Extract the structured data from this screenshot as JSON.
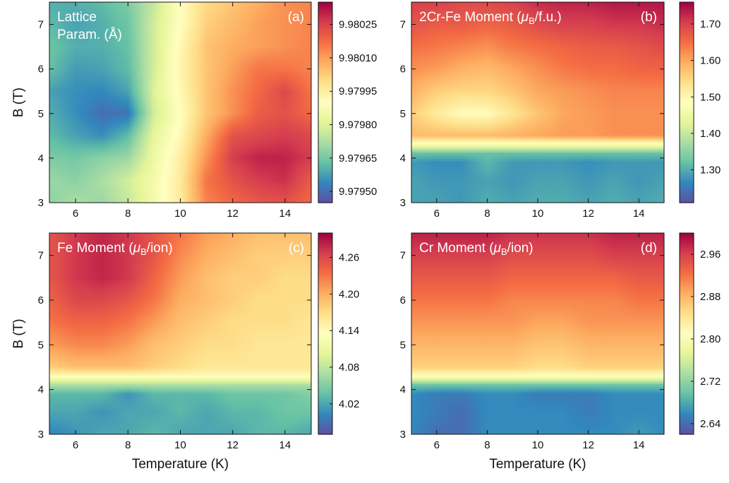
{
  "palette": [
    "#5e4fa2",
    "#3288bd",
    "#66c2a5",
    "#abdda4",
    "#e6f598",
    "#ffffbf",
    "#fee08b",
    "#fdae61",
    "#f46d43",
    "#d53e4f",
    "#9e0142"
  ],
  "chart_data": [
    {
      "type": "heatmap",
      "panel_label": "(a)",
      "title": "Lattice Param. (Å)",
      "title_lines": [
        "Lattice",
        "Param. (Å)"
      ],
      "xlabel": "",
      "ylabel": "B (T)",
      "xlim": [
        5,
        15
      ],
      "ylim": [
        3,
        7.5
      ],
      "xticks": [
        "6",
        "8",
        "10",
        "12",
        "14"
      ],
      "yticks": [
        "3",
        "4",
        "5",
        "6",
        "7"
      ],
      "color_range": [
        9.97945,
        9.98035
      ],
      "colorbar_ticks": [
        "9.98025",
        "9.98010",
        "9.97995",
        "9.97980",
        "9.97965",
        "9.97950"
      ],
      "x": [
        5,
        6,
        7,
        8,
        9,
        10,
        11,
        12,
        13,
        14,
        15
      ],
      "y": [
        3,
        3.5,
        4,
        4.5,
        5,
        5.5,
        6,
        6.5,
        7,
        7.5
      ],
      "values": [
        [
          9.97968,
          9.97972,
          9.9797,
          9.97976,
          9.97986,
          9.97996,
          9.98014,
          9.98018,
          9.98021,
          9.98022,
          9.98018
        ],
        [
          9.9797,
          9.97968,
          9.97972,
          9.97978,
          9.97986,
          9.97996,
          9.98016,
          9.98022,
          9.98026,
          9.98028,
          9.9802
        ],
        [
          9.97966,
          9.97965,
          9.97968,
          9.9797,
          9.97984,
          9.97995,
          9.98012,
          9.98026,
          9.9803,
          9.9803,
          9.98026
        ],
        [
          9.97962,
          9.97958,
          9.97955,
          9.97962,
          9.97982,
          9.97992,
          9.98008,
          9.98022,
          9.98024,
          9.98026,
          9.98024
        ],
        [
          9.9796,
          9.97955,
          9.9795,
          9.97951,
          9.97978,
          9.9799,
          9.98004,
          9.98012,
          9.9802,
          9.98022,
          9.98018
        ],
        [
          9.97958,
          9.97955,
          9.97954,
          9.97958,
          9.9798,
          9.97992,
          9.98004,
          9.98012,
          9.98018,
          9.98024,
          9.98016
        ],
        [
          9.97963,
          9.97957,
          9.97958,
          9.97962,
          9.97978,
          9.97993,
          9.98004,
          9.9801,
          9.98016,
          9.98016,
          9.98014
        ],
        [
          9.97964,
          9.9796,
          9.9796,
          9.97963,
          9.97978,
          9.97992,
          9.98004,
          9.98008,
          9.9801,
          9.98012,
          9.98014
        ],
        [
          9.97962,
          9.97958,
          9.9796,
          9.97964,
          9.97978,
          9.9799,
          9.98002,
          9.98006,
          9.9801,
          9.98012,
          9.98014
        ],
        [
          9.9796,
          9.9796,
          9.97962,
          9.97966,
          9.97976,
          9.9799,
          9.98,
          9.98004,
          9.98008,
          9.98012,
          9.98014
        ]
      ]
    },
    {
      "type": "heatmap",
      "panel_label": "(b)",
      "title": "2Cr-Fe Moment (μB/f.u.)",
      "title_lines": [
        "2Cr-Fe Moment (μB/f.u.)"
      ],
      "xlabel": "",
      "ylabel": "",
      "xlim": [
        5,
        15
      ],
      "ylim": [
        3,
        7.5
      ],
      "xticks": [
        "6",
        "8",
        "10",
        "12",
        "14"
      ],
      "yticks": [
        "3",
        "4",
        "5",
        "6",
        "7"
      ],
      "color_range": [
        1.21,
        1.76
      ],
      "colorbar_ticks": [
        "1.70",
        "1.60",
        "1.50",
        "1.40",
        "1.30"
      ],
      "x": [
        5,
        6,
        7,
        8,
        9,
        10,
        11,
        12,
        13,
        14,
        15
      ],
      "y": [
        3,
        3.5,
        3.9,
        4.1,
        4.3,
        4.5,
        5,
        5.5,
        6,
        6.5,
        7,
        7.5
      ],
      "values": [
        [
          1.29,
          1.29,
          1.28,
          1.3,
          1.29,
          1.3,
          1.3,
          1.29,
          1.3,
          1.29,
          1.3
        ],
        [
          1.29,
          1.28,
          1.28,
          1.29,
          1.28,
          1.29,
          1.29,
          1.28,
          1.29,
          1.28,
          1.29
        ],
        [
          1.28,
          1.27,
          1.27,
          1.31,
          1.28,
          1.28,
          1.28,
          1.27,
          1.28,
          1.28,
          1.28
        ],
        [
          1.32,
          1.32,
          1.32,
          1.32,
          1.32,
          1.32,
          1.32,
          1.32,
          1.32,
          1.32,
          1.32
        ],
        [
          1.47,
          1.47,
          1.47,
          1.47,
          1.47,
          1.47,
          1.47,
          1.47,
          1.47,
          1.47,
          1.47
        ],
        [
          1.58,
          1.58,
          1.58,
          1.58,
          1.59,
          1.6,
          1.61,
          1.61,
          1.62,
          1.62,
          1.62
        ],
        [
          1.56,
          1.52,
          1.49,
          1.49,
          1.53,
          1.57,
          1.6,
          1.61,
          1.62,
          1.62,
          1.62
        ],
        [
          1.59,
          1.56,
          1.55,
          1.55,
          1.57,
          1.6,
          1.61,
          1.62,
          1.63,
          1.63,
          1.63
        ],
        [
          1.62,
          1.61,
          1.59,
          1.58,
          1.6,
          1.62,
          1.64,
          1.65,
          1.65,
          1.66,
          1.66
        ],
        [
          1.65,
          1.64,
          1.63,
          1.62,
          1.64,
          1.65,
          1.66,
          1.67,
          1.67,
          1.68,
          1.69
        ],
        [
          1.68,
          1.67,
          1.67,
          1.66,
          1.67,
          1.69,
          1.7,
          1.7,
          1.71,
          1.71,
          1.72
        ],
        [
          1.7,
          1.7,
          1.69,
          1.69,
          1.7,
          1.72,
          1.73,
          1.73,
          1.74,
          1.74,
          1.74
        ]
      ]
    },
    {
      "type": "heatmap",
      "panel_label": "(c)",
      "title": "Fe Moment (μB/ion)",
      "title_lines": [
        "Fe Moment (μB/ion)"
      ],
      "xlabel": "Temperature (K)",
      "ylabel": "B (T)",
      "xlim": [
        5,
        15
      ],
      "ylim": [
        3,
        7.5
      ],
      "xticks": [
        "6",
        "8",
        "10",
        "12",
        "14"
      ],
      "yticks": [
        "3",
        "4",
        "5",
        "6",
        "7"
      ],
      "color_range": [
        3.97,
        4.3
      ],
      "colorbar_ticks": [
        "4.26",
        "4.20",
        "4.14",
        "4.08",
        "4.02"
      ],
      "x": [
        5,
        6,
        7,
        8,
        9,
        10,
        11,
        12,
        13,
        14,
        15
      ],
      "y": [
        3,
        3.5,
        3.9,
        4.1,
        4.3,
        4.5,
        5,
        5.5,
        6,
        6.5,
        7,
        7.5
      ],
      "values": [
        [
          4.0,
          4.01,
          4.02,
          4.02,
          4.03,
          4.02,
          4.02,
          4.02,
          4.03,
          4.03,
          4.02
        ],
        [
          4.02,
          4.02,
          4.01,
          4.02,
          4.02,
          4.03,
          4.02,
          4.03,
          4.03,
          4.04,
          4.04
        ],
        [
          4.03,
          4.03,
          4.03,
          4.01,
          4.03,
          4.03,
          4.03,
          4.04,
          4.04,
          4.04,
          4.05
        ],
        [
          4.07,
          4.07,
          4.07,
          4.07,
          4.07,
          4.07,
          4.07,
          4.07,
          4.07,
          4.07,
          4.07
        ],
        [
          4.14,
          4.14,
          4.14,
          4.14,
          4.14,
          4.14,
          4.14,
          4.14,
          4.14,
          4.14,
          4.14
        ],
        [
          4.18,
          4.19,
          4.19,
          4.19,
          4.18,
          4.17,
          4.16,
          4.16,
          4.16,
          4.16,
          4.16
        ],
        [
          4.21,
          4.22,
          4.22,
          4.21,
          4.19,
          4.18,
          4.17,
          4.17,
          4.16,
          4.16,
          4.16
        ],
        [
          4.23,
          4.24,
          4.24,
          4.23,
          4.21,
          4.19,
          4.18,
          4.17,
          4.17,
          4.17,
          4.16
        ],
        [
          4.24,
          4.26,
          4.26,
          4.25,
          4.23,
          4.2,
          4.19,
          4.18,
          4.17,
          4.17,
          4.17
        ],
        [
          4.25,
          4.27,
          4.28,
          4.27,
          4.24,
          4.21,
          4.19,
          4.18,
          4.18,
          4.17,
          4.17
        ],
        [
          4.25,
          4.27,
          4.28,
          4.27,
          4.25,
          4.22,
          4.2,
          4.19,
          4.18,
          4.18,
          4.18
        ],
        [
          4.25,
          4.27,
          4.28,
          4.27,
          4.25,
          4.23,
          4.21,
          4.2,
          4.19,
          4.19,
          4.19
        ]
      ]
    },
    {
      "type": "heatmap",
      "panel_label": "(d)",
      "title": "Cr Moment (μB/ion)",
      "title_lines": [
        "Cr Moment (μB/ion)"
      ],
      "xlabel": "Temperature (K)",
      "ylabel": "",
      "xlim": [
        5,
        15
      ],
      "ylim": [
        3,
        7.5
      ],
      "xticks": [
        "6",
        "8",
        "10",
        "12",
        "14"
      ],
      "yticks": [
        "3",
        "4",
        "5",
        "6",
        "7"
      ],
      "color_range": [
        2.62,
        3.0
      ],
      "colorbar_ticks": [
        "2.96",
        "2.88",
        "2.80",
        "2.72",
        "2.64"
      ],
      "x": [
        5,
        6,
        7,
        8,
        9,
        10,
        11,
        12,
        13,
        14,
        15
      ],
      "y": [
        3,
        3.5,
        3.9,
        4.1,
        4.3,
        4.5,
        5,
        5.5,
        6,
        6.5,
        7,
        7.5
      ],
      "values": [
        [
          2.66,
          2.64,
          2.64,
          2.66,
          2.66,
          2.66,
          2.66,
          2.66,
          2.66,
          2.67,
          2.66
        ],
        [
          2.66,
          2.65,
          2.64,
          2.66,
          2.66,
          2.66,
          2.66,
          2.65,
          2.66,
          2.66,
          2.66
        ],
        [
          2.66,
          2.65,
          2.65,
          2.66,
          2.66,
          2.65,
          2.65,
          2.65,
          2.66,
          2.66,
          2.66
        ],
        [
          2.7,
          2.7,
          2.7,
          2.7,
          2.7,
          2.7,
          2.7,
          2.7,
          2.7,
          2.7,
          2.7
        ],
        [
          2.81,
          2.81,
          2.81,
          2.81,
          2.81,
          2.81,
          2.81,
          2.81,
          2.81,
          2.81,
          2.81
        ],
        [
          2.86,
          2.86,
          2.86,
          2.86,
          2.86,
          2.85,
          2.85,
          2.86,
          2.86,
          2.86,
          2.86
        ],
        [
          2.88,
          2.88,
          2.88,
          2.88,
          2.88,
          2.87,
          2.87,
          2.88,
          2.88,
          2.88,
          2.88
        ],
        [
          2.9,
          2.9,
          2.9,
          2.9,
          2.9,
          2.89,
          2.89,
          2.9,
          2.9,
          2.9,
          2.9
        ],
        [
          2.92,
          2.92,
          2.92,
          2.92,
          2.91,
          2.91,
          2.91,
          2.91,
          2.91,
          2.92,
          2.92
        ],
        [
          2.94,
          2.94,
          2.94,
          2.94,
          2.93,
          2.93,
          2.93,
          2.93,
          2.93,
          2.94,
          2.94
        ],
        [
          2.96,
          2.96,
          2.96,
          2.96,
          2.95,
          2.95,
          2.95,
          2.95,
          2.96,
          2.96,
          2.96
        ],
        [
          2.98,
          2.98,
          2.98,
          2.98,
          2.97,
          2.97,
          2.97,
          2.97,
          2.98,
          2.98,
          2.98
        ]
      ]
    }
  ]
}
